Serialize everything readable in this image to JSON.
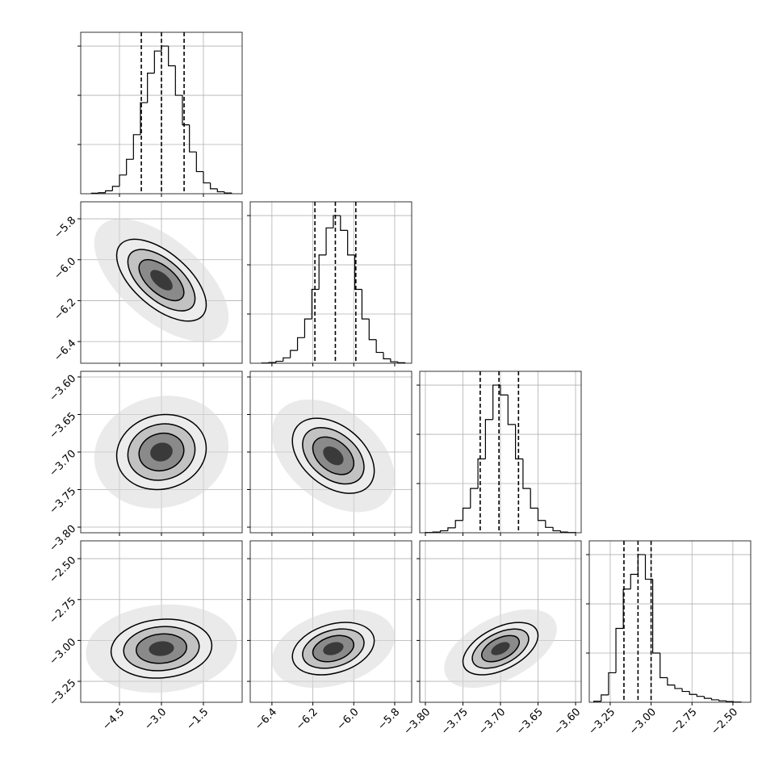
{
  "chart_data": {
    "type": "corner",
    "color": "#000000",
    "grid": true,
    "hist_ylim": [
      0,
      3280
    ],
    "hist_yticks": [
      1000,
      2000,
      3000
    ],
    "params": [
      {
        "lim": [
          -5.885,
          -0.115
        ],
        "ticks": [
          {
            "value": -4.5,
            "label": "−4.5"
          },
          {
            "value": -3.0,
            "label": "−3.0"
          },
          {
            "value": -1.5,
            "label": "−1.5"
          }
        ],
        "bins": [
          -5.5,
          -5.25,
          -5.0,
          -4.75,
          -4.5,
          -4.25,
          -4.0,
          -3.75,
          -3.5,
          -3.25,
          -3.0,
          -2.75,
          -2.5,
          -2.25,
          -2.0,
          -1.75,
          -1.5,
          -1.25,
          -1.0,
          -0.75,
          -0.5
        ],
        "counts": [
          10,
          20,
          60,
          150,
          380,
          700,
          1200,
          1850,
          2450,
          2900,
          3000,
          2600,
          2000,
          1400,
          850,
          450,
          220,
          100,
          40,
          15
        ],
        "quantiles": [
          -3.72,
          -3.0,
          -2.19
        ]
      },
      {
        "lim": [
          -6.506,
          -5.717
        ],
        "ticks": [
          {
            "value": -6.4,
            "label": "−6.4"
          },
          {
            "value": -6.2,
            "label": "−6.2"
          },
          {
            "value": -6.0,
            "label": "−6.0"
          },
          {
            "value": -5.8,
            "label": "−5.8"
          }
        ],
        "bins": [
          -6.45,
          -6.415,
          -6.38,
          -6.345,
          -6.31,
          -6.275,
          -6.24,
          -6.205,
          -6.17,
          -6.135,
          -6.1,
          -6.065,
          -6.03,
          -5.995,
          -5.96,
          -5.925,
          -5.89,
          -5.855,
          -5.82,
          -5.785,
          -5.75
        ],
        "counts": [
          5,
          15,
          40,
          110,
          260,
          520,
          900,
          1500,
          2200,
          2750,
          3000,
          2700,
          2200,
          1500,
          900,
          480,
          220,
          90,
          30,
          10
        ],
        "quantiles": [
          -6.19,
          -6.09,
          -5.99
        ]
      },
      {
        "lim": [
          -3.8075,
          -3.5925
        ],
        "ticks": [
          {
            "value": -3.8,
            "label": "−3.80"
          },
          {
            "value": -3.75,
            "label": "−3.75"
          },
          {
            "value": -3.7,
            "label": "−3.70"
          },
          {
            "value": -3.65,
            "label": "−3.65"
          },
          {
            "value": -3.6,
            "label": "−3.60"
          }
        ],
        "bins": [
          -3.8,
          -3.79,
          -3.78,
          -3.77,
          -3.76,
          -3.75,
          -3.74,
          -3.73,
          -3.72,
          -3.71,
          -3.7,
          -3.69,
          -3.68,
          -3.67,
          -3.66,
          -3.65,
          -3.64,
          -3.63,
          -3.62,
          -3.61,
          -3.6
        ],
        "counts": [
          5,
          15,
          40,
          100,
          250,
          500,
          900,
          1500,
          2300,
          3000,
          2800,
          2200,
          1500,
          900,
          500,
          250,
          110,
          40,
          15,
          5
        ],
        "quantiles": [
          -3.727,
          -3.702,
          -3.676
        ]
      },
      {
        "lim": [
          -3.378,
          -2.391
        ],
        "ticks": [
          {
            "value": -3.25,
            "label": "−3.25"
          },
          {
            "value": -3.0,
            "label": "−3.00"
          },
          {
            "value": -2.75,
            "label": "−2.75"
          },
          {
            "value": -2.5,
            "label": "−2.50"
          }
        ],
        "bins": [
          -3.35,
          -3.305,
          -3.26,
          -3.215,
          -3.17,
          -3.125,
          -3.08,
          -3.035,
          -2.99,
          -2.945,
          -2.9,
          -2.855,
          -2.81,
          -2.765,
          -2.72,
          -2.675,
          -2.63,
          -2.585,
          -2.54,
          -2.495,
          -2.45
        ],
        "counts": [
          20,
          150,
          600,
          1500,
          2300,
          2600,
          3000,
          2500,
          1000,
          500,
          350,
          280,
          220,
          160,
          120,
          80,
          50,
          30,
          15,
          5
        ],
        "quantiles": [
          -3.166,
          -3.08,
          -3.0
        ]
      }
    ],
    "pairs": [
      {
        "x": 0,
        "y": 1,
        "center": [
          -3.0,
          -6.1
        ],
        "sigma": [
          0.8,
          0.1
        ],
        "rho": -0.6,
        "levels": [
          0.5,
          1,
          1.5,
          2
        ]
      },
      {
        "x": 0,
        "y": 2,
        "center": [
          -3.0,
          -3.7
        ],
        "sigma": [
          0.8,
          0.025
        ],
        "rho": 0.1,
        "levels": [
          0.5,
          1,
          1.5,
          2
        ]
      },
      {
        "x": 1,
        "y": 2,
        "center": [
          -6.1,
          -3.705
        ],
        "sigma": [
          0.1,
          0.025
        ],
        "rho": -0.4,
        "levels": [
          0.5,
          1,
          1.5,
          2
        ]
      },
      {
        "x": 0,
        "y": 3,
        "center": [
          -3.0,
          -3.05
        ],
        "sigma": [
          0.9,
          0.09
        ],
        "rho": 0.1,
        "levels": [
          0.5,
          1,
          1.5,
          2
        ]
      },
      {
        "x": 1,
        "y": 3,
        "center": [
          -6.1,
          -3.05
        ],
        "sigma": [
          0.1,
          0.08
        ],
        "rho": 0.3,
        "levels": [
          0.5,
          1,
          1.5,
          2
        ]
      },
      {
        "x": 2,
        "y": 3,
        "center": [
          -3.7,
          -3.05
        ],
        "sigma": [
          0.025,
          0.08
        ],
        "rho": 0.5,
        "levels": [
          0.5,
          1,
          1.5,
          2
        ]
      }
    ]
  }
}
